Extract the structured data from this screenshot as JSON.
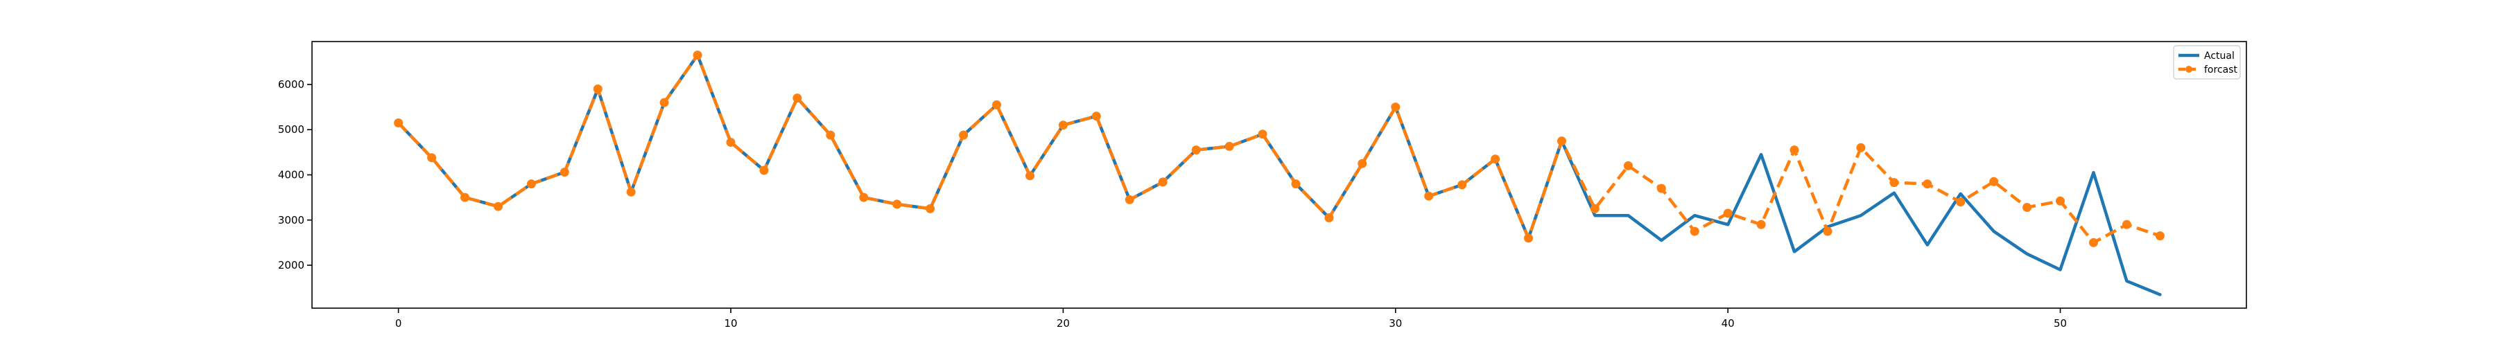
{
  "chart_data": {
    "type": "line",
    "title": "",
    "xlabel": "",
    "ylabel": "",
    "xlim": [
      -2.6,
      55.6
    ],
    "ylim": [
      1050,
      6950
    ],
    "grid": false,
    "legend_placement": "top-right",
    "x_ticks": [
      0,
      10,
      20,
      30,
      40,
      50
    ],
    "y_ticks": [
      2000,
      3000,
      4000,
      5000,
      6000
    ],
    "series": [
      {
        "name": "Actual",
        "color": "#1f77b4",
        "style": "solid",
        "marker": "none",
        "x": [
          0,
          1,
          2,
          3,
          4,
          5,
          6,
          7,
          8,
          9,
          10,
          11,
          12,
          13,
          14,
          15,
          16,
          17,
          18,
          19,
          20,
          21,
          22,
          23,
          24,
          25,
          26,
          27,
          28,
          29,
          30,
          31,
          32,
          33,
          34,
          35,
          36,
          37,
          38,
          39,
          40,
          41,
          42,
          43,
          44,
          45,
          46,
          47,
          48,
          49,
          50,
          51,
          52,
          53
        ],
        "values": [
          5150,
          4380,
          3500,
          3300,
          3800,
          4060,
          5900,
          3620,
          5600,
          6650,
          4720,
          4100,
          5700,
          4880,
          3500,
          3350,
          3250,
          4880,
          5550,
          3980,
          5100,
          5300,
          3450,
          3840,
          4550,
          4630,
          4900,
          3800,
          3050,
          4250,
          5500,
          3530,
          3780,
          4350,
          2600,
          4750,
          3100,
          3100,
          2550,
          3100,
          2900,
          4450,
          2300,
          2850,
          3100,
          3600,
          2450,
          3580,
          2750,
          2250,
          1900,
          4050,
          1650,
          1350
        ]
      },
      {
        "name": "forcast",
        "color": "#ff7f0e",
        "style": "dashed",
        "marker": "circle",
        "x": [
          0,
          1,
          2,
          3,
          4,
          5,
          6,
          7,
          8,
          9,
          10,
          11,
          12,
          13,
          14,
          15,
          16,
          17,
          18,
          19,
          20,
          21,
          22,
          23,
          24,
          25,
          26,
          27,
          28,
          29,
          30,
          31,
          32,
          33,
          34,
          35,
          36,
          37,
          38,
          39,
          40,
          41,
          42,
          43,
          44,
          45,
          46,
          47,
          48,
          49,
          50,
          51,
          52,
          53
        ],
        "values": [
          5150,
          4380,
          3500,
          3300,
          3800,
          4060,
          5900,
          3620,
          5600,
          6650,
          4720,
          4100,
          5700,
          4880,
          3500,
          3350,
          3250,
          4880,
          5550,
          3980,
          5100,
          5300,
          3450,
          3840,
          4550,
          4630,
          4900,
          3800,
          3050,
          4250,
          5500,
          3530,
          3780,
          4350,
          2600,
          4750,
          3250,
          4200,
          3700,
          2750,
          3150,
          2900,
          4550,
          2750,
          4600,
          3830,
          3800,
          3400,
          3850,
          3280,
          3420,
          2500,
          2900,
          2650
        ]
      }
    ]
  }
}
